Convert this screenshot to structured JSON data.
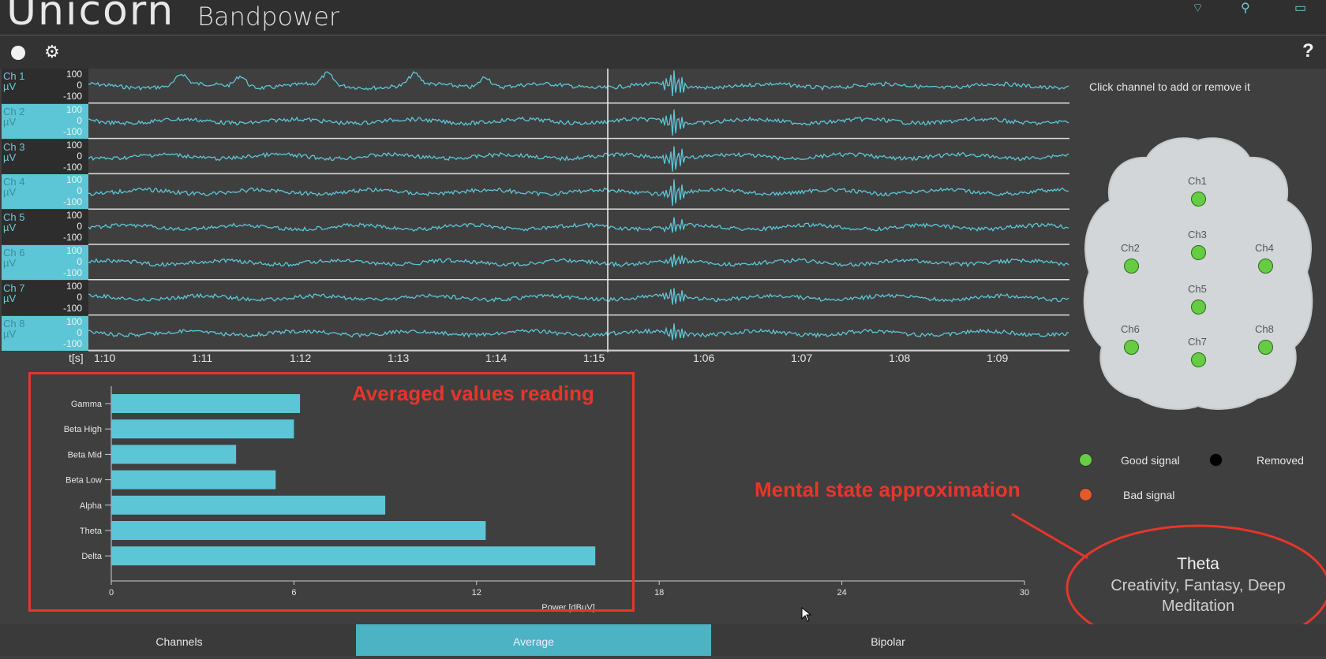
{
  "header": {
    "logo_text": "ᑌnicorn",
    "app_title": "Bandpower"
  },
  "toolbar": {
    "record_icon": "record-dot-icon",
    "settings_icon": "gear-icon",
    "help_label": "?"
  },
  "eeg": {
    "channels": [
      {
        "name": "Ch 1",
        "unit": "µV",
        "top": "100",
        "mid": "0",
        "bottom": "-100"
      },
      {
        "name": "Ch 2",
        "unit": "µV",
        "top": "100",
        "mid": "0",
        "bottom": "-100"
      },
      {
        "name": "Ch 3",
        "unit": "µV",
        "top": "100",
        "mid": "0",
        "bottom": "-100"
      },
      {
        "name": "Ch 4",
        "unit": "µV",
        "top": "100",
        "mid": "0",
        "bottom": "-100"
      },
      {
        "name": "Ch 5",
        "unit": "µV",
        "top": "100",
        "mid": "0",
        "bottom": "-100"
      },
      {
        "name": "Ch 6",
        "unit": "µV",
        "top": "100",
        "mid": "0",
        "bottom": "-100"
      },
      {
        "name": "Ch 7",
        "unit": "µV",
        "top": "100",
        "mid": "0",
        "bottom": "-100"
      },
      {
        "name": "Ch 8",
        "unit": "µV",
        "top": "100",
        "mid": "0",
        "bottom": "-100"
      }
    ],
    "time_axis_label": "t[s]",
    "time_ticks": [
      "1:10",
      "1:11",
      "1:12",
      "1:13",
      "1:14",
      "1:15",
      "1:06",
      "1:07",
      "1:08",
      "1:09"
    ],
    "trace_color": "#5cc6d6"
  },
  "headmap": {
    "hint": "Click channel to add or remove it",
    "electrodes": [
      "Ch1",
      "Ch2",
      "Ch3",
      "Ch4",
      "Ch5",
      "Ch6",
      "Ch7",
      "Ch8"
    ],
    "electrode_color": "#66cc44"
  },
  "legend": {
    "good": "Good signal",
    "removed": "Removed",
    "bad": "Bad signal",
    "good_color": "#66cc44",
    "removed_color": "#000000",
    "bad_color": "#e05a2a"
  },
  "chart_data": {
    "type": "bar",
    "orientation": "horizontal",
    "categories": [
      "Gamma",
      "Beta High",
      "Beta Mid",
      "Beta Low",
      "Alpha",
      "Theta",
      "Delta"
    ],
    "values": [
      6.2,
      6.0,
      4.1,
      5.4,
      9.0,
      12.3,
      15.9
    ],
    "xlabel": "Power [dBµV]",
    "xlim": [
      0,
      30
    ],
    "xticks": [
      "0",
      "6",
      "12",
      "18",
      "24",
      "30"
    ],
    "bar_color": "#5cc6d6"
  },
  "annotations": {
    "averaged": "Averaged values reading",
    "mental": "Mental state approximation"
  },
  "mental_state": {
    "name": "Theta",
    "description": "Creativity, Fantasy, Deep Meditation"
  },
  "tabs": [
    "Channels",
    "Average",
    "Bipolar"
  ],
  "active_tab": "Average"
}
